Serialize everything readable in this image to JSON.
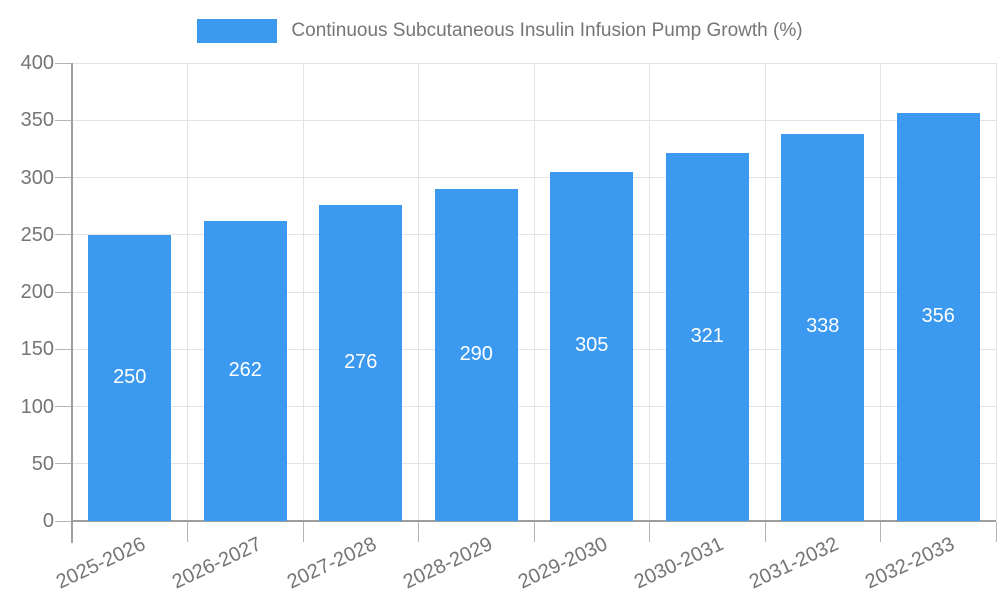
{
  "chart_data": {
    "type": "bar",
    "title": "Continuous Subcutaneous Insulin Infusion Pump Growth (%)",
    "categories": [
      "2025-2026",
      "2026-2027",
      "2027-2028",
      "2028-2029",
      "2029-2030",
      "2030-2031",
      "2031-2032",
      "2032-2033"
    ],
    "values": [
      250,
      262,
      276,
      290,
      305,
      321,
      338,
      356
    ],
    "xlabel": "",
    "ylabel": "",
    "ylim": [
      0,
      400
    ],
    "ytick_step": 50,
    "grid": true,
    "legend_position": "top-center",
    "bar_label_position": "inside-center",
    "x_label_rotation_deg": -25,
    "colors": {
      "bar": "#3B99F0",
      "bar_label": "#ffffff",
      "axis_text": "#757575",
      "gridline": "#e3e3e3",
      "axis_line": "#9e9e9e"
    }
  }
}
